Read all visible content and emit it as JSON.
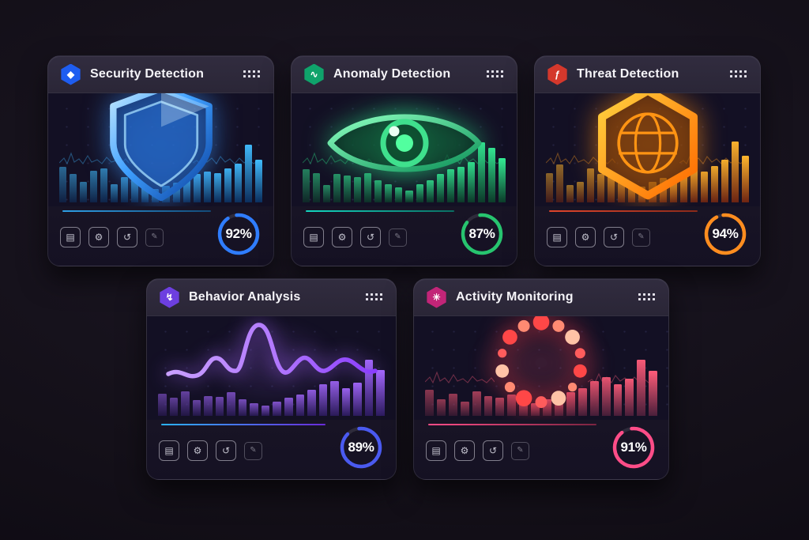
{
  "cards": [
    {
      "title": "Security Detection",
      "percent": "92%",
      "percent_value": 92,
      "badge": {
        "name": "diamond-icon",
        "glyph": "◆",
        "color": "#1e5df0"
      },
      "menu_icon": "grid-dots-icon",
      "center_icon": "shield-icon",
      "accent": "#41b6ff",
      "ring_color": "#2f7dff",
      "bar_colors": [
        "#0c2f5e",
        "#41bdff"
      ],
      "underline_colors": [
        "#2e9fe6",
        "#134a78"
      ],
      "bars": [
        58,
        46,
        34,
        52,
        56,
        30,
        42,
        38,
        26,
        22,
        27,
        33,
        40,
        46,
        50,
        48,
        56,
        64,
        95,
        70
      ],
      "footer_icons": [
        {
          "name": "chart-grid-icon",
          "glyph": "▤"
        },
        {
          "name": "bug-scan-icon",
          "glyph": "⚙"
        },
        {
          "name": "sync-cloud-icon",
          "glyph": "↺"
        },
        {
          "name": "pen-tool-icon",
          "glyph": "✎"
        }
      ]
    },
    {
      "title": "Anomaly Detection",
      "percent": "87%",
      "percent_value": 87,
      "badge": {
        "name": "trend-line-icon",
        "glyph": "∿",
        "color": "#0fa36b"
      },
      "menu_icon": "grid-dots-icon",
      "center_icon": "eye-icon",
      "accent": "#2ee58a",
      "ring_color": "#27c46f",
      "bar_colors": [
        "#0b3d2a",
        "#35eb95"
      ],
      "underline_colors": [
        "#14d6c0",
        "#0a6e62"
      ],
      "bars": [
        55,
        48,
        28,
        46,
        44,
        42,
        48,
        36,
        30,
        24,
        20,
        30,
        36,
        46,
        54,
        58,
        66,
        98,
        90,
        72
      ],
      "footer_icons": [
        {
          "name": "chart-grid-icon",
          "glyph": "▤"
        },
        {
          "name": "bug-scan-icon",
          "glyph": "⚙"
        },
        {
          "name": "sync-cloud-icon",
          "glyph": "↺"
        },
        {
          "name": "pen-tool-icon",
          "glyph": "✎"
        }
      ]
    },
    {
      "title": "Threat Detection",
      "percent": "94%",
      "percent_value": 94,
      "badge": {
        "name": "flame-icon",
        "glyph": "ƒ",
        "color": "#d4382c"
      },
      "menu_icon": "grid-dots-icon",
      "center_icon": "hex-globe-icon",
      "accent": "#ff9c1f",
      "ring_color": "#ff8d1f",
      "bar_colors": [
        "#6e2412",
        "#ffb62e"
      ],
      "underline_colors": [
        "#e0452b",
        "#8a2a1a"
      ],
      "bars": [
        48,
        62,
        28,
        34,
        56,
        46,
        44,
        40,
        30,
        26,
        34,
        40,
        38,
        46,
        54,
        50,
        60,
        70,
        100,
        76
      ],
      "footer_icons": [
        {
          "name": "chart-grid-icon",
          "glyph": "▤"
        },
        {
          "name": "bug-scan-icon",
          "glyph": "⚙"
        },
        {
          "name": "sync-cloud-icon",
          "glyph": "↺"
        },
        {
          "name": "pen-tool-icon",
          "glyph": "✎"
        }
      ]
    },
    {
      "title": "Behavior Analysis",
      "percent": "89%",
      "percent_value": 89,
      "badge": {
        "name": "motion-arrow-icon",
        "glyph": "↯",
        "color": "#6d3fe0"
      },
      "menu_icon": "grid-dots-icon",
      "center_icon": "waveform-icon",
      "accent": "#a86bff",
      "ring_color": "#4a5af0",
      "bar_colors": [
        "#2c1b5e",
        "#a468ff"
      ],
      "underline_colors": [
        "#2bb3ff",
        "#6a2bd9"
      ],
      "bars": [
        40,
        32,
        44,
        28,
        36,
        34,
        42,
        30,
        22,
        18,
        26,
        32,
        38,
        46,
        56,
        62,
        50,
        60,
        100,
        82
      ],
      "footer_icons": [
        {
          "name": "chart-grid-icon",
          "glyph": "▤"
        },
        {
          "name": "bug-scan-icon",
          "glyph": "⚙"
        },
        {
          "name": "sync-cloud-icon",
          "glyph": "↺"
        },
        {
          "name": "pen-tool-icon",
          "glyph": "✎"
        }
      ]
    },
    {
      "title": "Activity Monitoring",
      "percent": "91%",
      "percent_value": 91,
      "badge": {
        "name": "person-activity-icon",
        "glyph": "✳",
        "color": "#c22578"
      },
      "menu_icon": "grid-dots-icon",
      "center_icon": "dot-ring-icon",
      "accent": "#ff5d7e",
      "ring_color": "#ff4d88",
      "bar_colors": [
        "#4a1f3a",
        "#ff5c7a"
      ],
      "underline_colors": [
        "#ff4d88",
        "#7a2440"
      ],
      "bars": [
        46,
        30,
        40,
        26,
        44,
        36,
        32,
        38,
        28,
        22,
        30,
        36,
        42,
        50,
        62,
        70,
        56,
        66,
        100,
        80
      ],
      "footer_icons": [
        {
          "name": "chart-grid-icon",
          "glyph": "▤"
        },
        {
          "name": "bug-scan-icon",
          "glyph": "⚙"
        },
        {
          "name": "sync-cloud-icon",
          "glyph": "↺"
        },
        {
          "name": "pen-tool-icon",
          "glyph": "✎"
        }
      ]
    }
  ]
}
